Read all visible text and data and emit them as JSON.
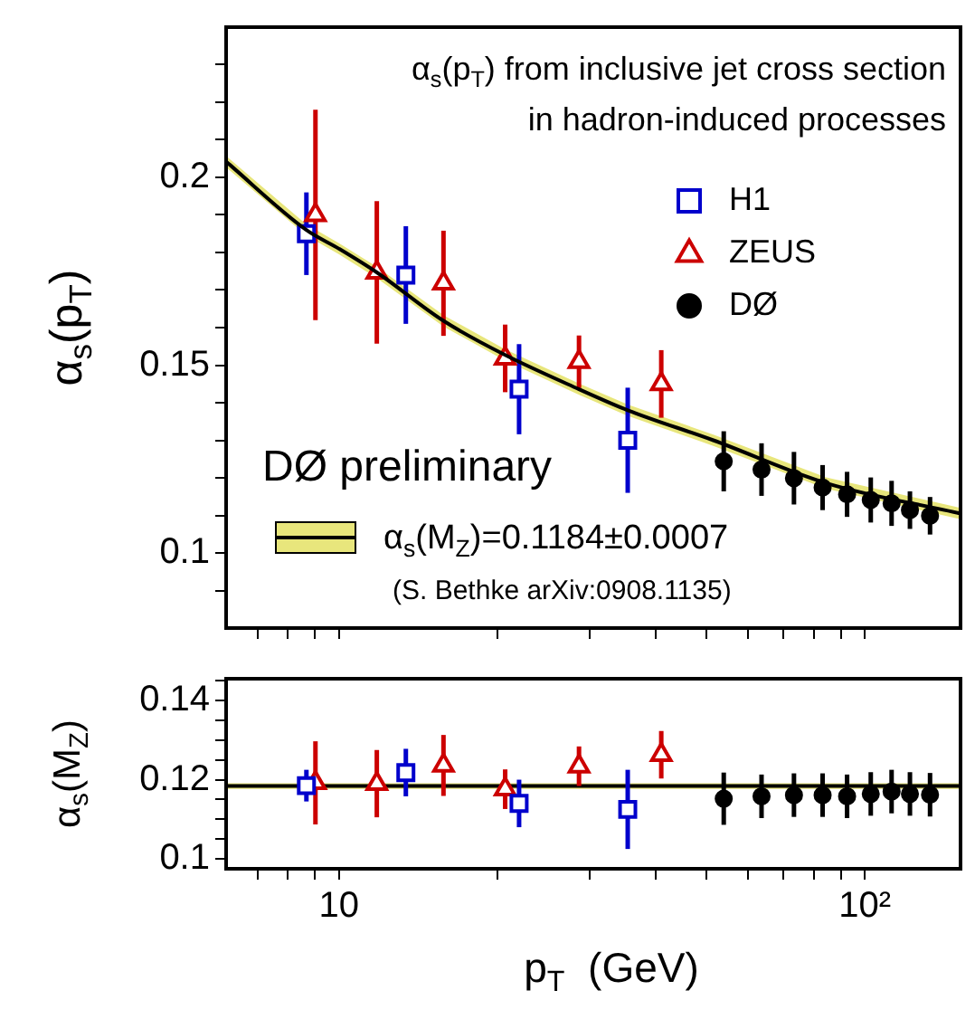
{
  "chart_data": [
    {
      "type": "scatter",
      "title": "α$_{s}$(p$_{T}$) from inclusive jet cross section\nin hadron-induced processes",
      "ylabel": "α$_{s}$(p$_{T}$)",
      "log": "x",
      "legend": "top right",
      "tick_labels": "y",
      "xlim": [
        6.1,
        152
      ],
      "ylim": [
        0.08,
        0.24
      ],
      "xticks": [
        7,
        8,
        9,
        10,
        20,
        30,
        40,
        50,
        60,
        70,
        80,
        90,
        {
          "value": 100,
          "label": null
        }
      ],
      "yticks": [
        {
          "value": 0.09,
          "label": null
        },
        0.1,
        {
          "value": 0.11,
          "label": null
        },
        {
          "value": 0.12,
          "label": null
        },
        {
          "value": 0.13,
          "label": null
        },
        {
          "value": 0.14,
          "label": null
        },
        0.15,
        {
          "value": 0.16,
          "label": null
        },
        {
          "value": 0.17,
          "label": null
        },
        {
          "value": 0.18,
          "label": null
        },
        {
          "value": 0.19,
          "label": null
        },
        0.2,
        {
          "value": 0.21,
          "label": null
        },
        {
          "value": 0.22,
          "label": null
        },
        {
          "value": 0.23,
          "label": null
        }
      ],
      "annotations": [
        "DØ preliminary",
        "α$_{s}$(M$_{Z}$)=0.1184±0.0007",
        "(S. Bethke arXiv:0908.1135)"
      ],
      "series": [
        {
          "type": "line",
          "color": "#000000",
          "marker": "none",
          "x": [
            6.1,
            8.67,
            10,
            11.8,
            15.8,
            20.7,
            28.6,
            35.4,
            51.5,
            84.4,
            152
          ],
          "values": [
            0.2042,
            0.186,
            0.181,
            0.1747,
            0.1618,
            0.1527,
            0.1436,
            0.138,
            0.13,
            0.1186,
            0.1105
          ],
          "lower": [
            0.2027,
            0.1845,
            0.1795,
            0.1732,
            0.1603,
            0.1512,
            0.1421,
            0.1365,
            0.1285,
            0.1171,
            0.109
          ],
          "upper": [
            0.2057,
            0.1875,
            0.1825,
            0.1762,
            0.1633,
            0.1542,
            0.1451,
            0.1395,
            0.1315,
            0.1201,
            0.112
          ]
        },
        {
          "name": "H1",
          "color": "#0000cc",
          "marker": "square",
          "x": [
            8.67,
            13.4,
            22.0,
            35.4
          ],
          "values": [
            0.185,
            0.174,
            0.1436,
            0.13
          ],
          "errors": [
            0.011,
            0.013,
            0.012,
            0.014
          ]
        },
        {
          "name": "ZEUS",
          "color": "#cc0000",
          "marker": "triangle",
          "x": [
            9.02,
            11.8,
            15.8,
            20.7,
            28.6,
            41.0
          ],
          "values": [
            0.19,
            0.1747,
            0.1718,
            0.1518,
            0.1509,
            0.145
          ],
          "errors": [
            0.028,
            0.019,
            0.014,
            0.009,
            0.007,
            0.009
          ]
        },
        {
          "name": "DØ",
          "color": "#000000",
          "marker": "circle",
          "x": [
            53.9,
            63.6,
            73.3,
            83.1,
            92.5,
            102.6,
            112.4,
            121.8,
            133
          ],
          "values": [
            0.1244,
            0.1222,
            0.1199,
            0.1174,
            0.1156,
            0.1141,
            0.1132,
            0.1114,
            0.1099
          ],
          "errors": [
            0.008,
            0.007,
            0.007,
            0.006,
            0.006,
            0.006,
            0.006,
            0.005,
            0.005
          ]
        }
      ]
    },
    {
      "type": "scatter",
      "xlabel": "p$_{T}$  (GeV)",
      "ylabel": "α$_{s}$(M$_{Z}$)",
      "log": "x",
      "xlim": [
        6.1,
        152
      ],
      "ylim": [
        0.0975,
        0.1455
      ],
      "xticks": [
        {
          "value": 7,
          "label": null
        },
        {
          "value": 8,
          "label": null
        },
        {
          "value": 9,
          "label": null
        },
        10,
        {
          "value": 20,
          "label": null
        },
        {
          "value": 30,
          "label": null
        },
        {
          "value": 40,
          "label": null
        },
        {
          "value": 50,
          "label": null
        },
        {
          "value": 60,
          "label": null
        },
        {
          "value": 70,
          "label": null
        },
        {
          "value": 80,
          "label": null
        },
        {
          "value": 90,
          "label": null
        },
        {
          "value": 100,
          "label": "10²"
        }
      ],
      "yticks": [
        0.1,
        {
          "value": 0.105,
          "label": null
        },
        {
          "value": 0.11,
          "label": null
        },
        {
          "value": 0.115,
          "label": null
        },
        0.12,
        {
          "value": 0.125,
          "label": null
        },
        {
          "value": 0.13,
          "label": null
        },
        {
          "value": 0.135,
          "label": null
        },
        0.14,
        {
          "value": 0.145,
          "label": null
        }
      ],
      "ref_lines": [
        {
          "axis": "y",
          "value": 0.1184,
          "color": "#000000"
        }
      ],
      "bands": [
        {
          "axis": "y",
          "from": 0.1177,
          "to": 0.1191,
          "color": "#e8e67c"
        }
      ],
      "series": [
        {
          "color": "#0000cc",
          "marker": "square",
          "x": [
            8.67,
            13.4,
            22.0,
            35.4
          ],
          "values": [
            0.1185,
            0.1218,
            0.114,
            0.1125
          ],
          "errors": [
            0.004,
            0.006,
            0.006,
            0.01
          ]
        },
        {
          "color": "#cc0000",
          "marker": "triangle",
          "x": [
            9.02,
            11.8,
            15.8,
            20.7,
            28.6,
            41.0
          ],
          "values": [
            0.1192,
            0.119,
            0.1236,
            0.1176,
            0.1234,
            0.1263
          ],
          "errors": [
            0.0105,
            0.0085,
            0.0077,
            0.005,
            0.005,
            0.006
          ]
        },
        {
          "color": "#000000",
          "marker": "circle",
          "x": [
            53.9,
            63.6,
            73.3,
            83.1,
            92.5,
            102.6,
            112.4,
            121.8,
            133
          ],
          "values": [
            0.1152,
            0.1158,
            0.1161,
            0.1161,
            0.1158,
            0.1164,
            0.117,
            0.1164,
            0.1162
          ],
          "errors": [
            0.0066,
            0.0055,
            0.0055,
            0.0055,
            0.0055,
            0.0055,
            0.0055,
            0.0055,
            0.0055
          ]
        }
      ]
    }
  ]
}
